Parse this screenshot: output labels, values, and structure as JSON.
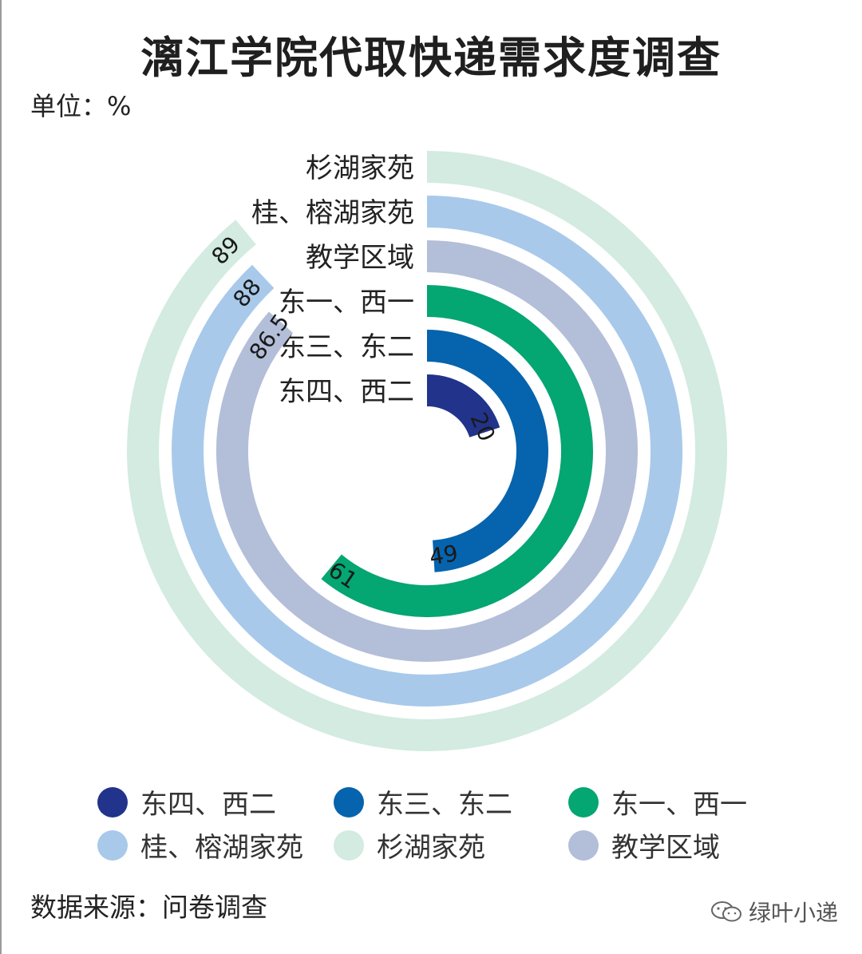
{
  "chart_data": {
    "type": "radial_bar",
    "title": "漓江学院代取快递需求度调查",
    "unit_label": "单位：%",
    "source": "数据来源：问卷调查",
    "max_value": 100,
    "series": [
      {
        "name": "东四、西二",
        "value": 20,
        "color": "#22338c"
      },
      {
        "name": "东三、东二",
        "value": 49,
        "color": "#0663ad"
      },
      {
        "name": "东一、西一",
        "value": 61,
        "color": "#04a672"
      },
      {
        "name": "教学区域",
        "value": 86.5,
        "color": "#b3bed9"
      },
      {
        "name": "桂、榕湖家苑",
        "value": 88,
        "color": "#a8c9ea"
      },
      {
        "name": "杉湖家苑",
        "value": 89,
        "color": "#d3ebe1"
      }
    ],
    "legend": {
      "placement": "bottom",
      "order": [
        "东四、西二",
        "东三、东二",
        "东一、西一",
        "桂、榕湖家苑",
        "杉湖家苑",
        "教学区域"
      ]
    }
  },
  "watermark": {
    "text": "绿叶小递",
    "icon": "wechat-icon"
  }
}
